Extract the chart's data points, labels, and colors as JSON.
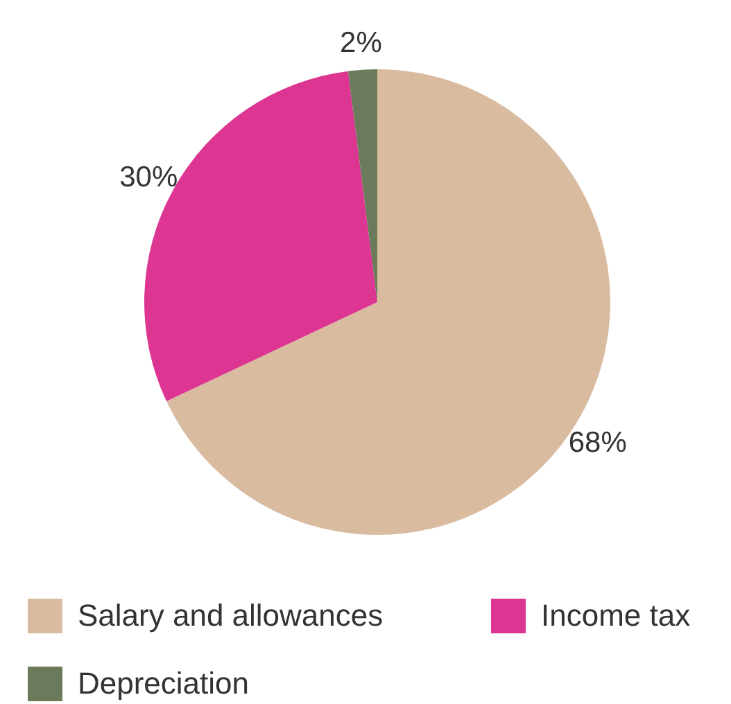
{
  "chart_data": {
    "type": "pie",
    "categories": [
      "Salary and allowances",
      "Income tax",
      "Depreciation"
    ],
    "values": [
      68,
      30,
      2
    ],
    "colors": [
      "#d9bba0",
      "#dc3592",
      "#6b7a5a"
    ],
    "value_labels": [
      "68%",
      "30%",
      "2%"
    ],
    "legend": "bottom"
  }
}
